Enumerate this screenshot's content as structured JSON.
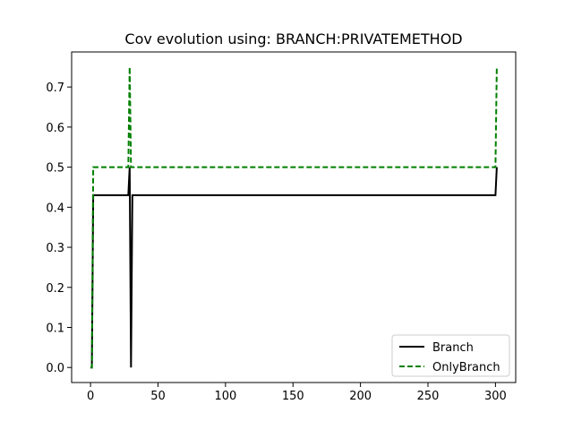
{
  "chart_data": {
    "type": "line",
    "title": "Cov evolution using: BRANCH:PRIVATEMETHOD",
    "xlabel": "",
    "ylabel": "",
    "xlim": [
      -14,
      315
    ],
    "ylim": [
      -0.0375,
      0.7875
    ],
    "xticks": [
      0,
      50,
      100,
      150,
      200,
      250,
      300
    ],
    "xtick_labels": [
      "0",
      "50",
      "100",
      "150",
      "200",
      "250",
      "300"
    ],
    "yticks": [
      0.0,
      0.1,
      0.2,
      0.3,
      0.4,
      0.5,
      0.6,
      0.7
    ],
    "ytick_labels": [
      "0.0",
      "0.1",
      "0.2",
      "0.3",
      "0.4",
      "0.5",
      "0.6",
      "0.7"
    ],
    "grid": false,
    "legend_position": "bottom-right",
    "series": [
      {
        "name": "Branch",
        "color": "#000000",
        "dash": "solid",
        "x": [
          0,
          1,
          2,
          28,
          29,
          30,
          31,
          300,
          301
        ],
        "y": [
          0.0,
          0.0,
          0.43,
          0.43,
          0.5,
          0.0,
          0.43,
          0.43,
          0.5
        ]
      },
      {
        "name": "OnlyBranch",
        "color": "#008000",
        "dash": "dashed",
        "x": [
          0,
          1,
          2,
          28,
          29,
          30,
          300,
          301
        ],
        "y": [
          0.0,
          0.0,
          0.5,
          0.5,
          0.75,
          0.5,
          0.5,
          0.75
        ]
      }
    ]
  }
}
